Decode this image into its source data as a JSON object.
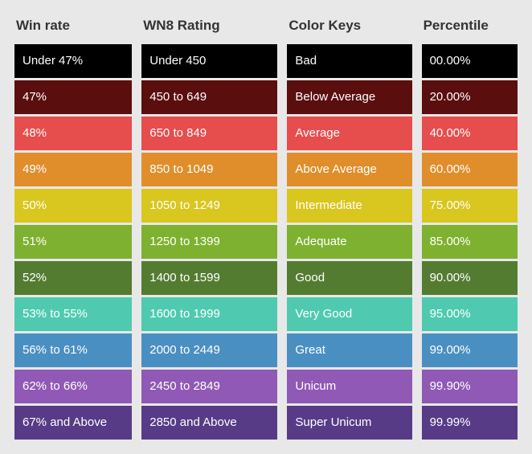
{
  "table": {
    "columns": [
      {
        "key": "winrate",
        "header": "Win rate",
        "width_class": "col-winrate"
      },
      {
        "key": "wn8",
        "header": "WN8 Rating",
        "width_class": "col-wn8"
      },
      {
        "key": "colorkeys",
        "header": "Color Keys",
        "width_class": "col-keys"
      },
      {
        "key": "percentile",
        "header": "Percentile",
        "width_class": "col-pct"
      }
    ],
    "background_color": "#e8e8e8",
    "header_color": "#333333",
    "cell_text_color": "#ffffff",
    "header_fontsize": 17,
    "cell_fontsize": 15,
    "rows": [
      {
        "color": "#000000",
        "winrate": "Under 47%",
        "wn8": "Under 450",
        "colorkeys": "Bad",
        "percentile": "00.00%"
      },
      {
        "color": "#5a0e0e",
        "winrate": "47%",
        "wn8": "450 to 649",
        "colorkeys": "Below Average",
        "percentile": "20.00%"
      },
      {
        "color": "#e64d4d",
        "winrate": "48%",
        "wn8": "650 to 849",
        "colorkeys": "Average",
        "percentile": "40.00%"
      },
      {
        "color": "#e08e2b",
        "winrate": "49%",
        "wn8": "850 to 1049",
        "colorkeys": "Above Average",
        "percentile": "60.00%"
      },
      {
        "color": "#d9c61f",
        "winrate": "50%",
        "wn8": "1050 to 1249",
        "colorkeys": "Intermediate",
        "percentile": "75.00%"
      },
      {
        "color": "#7eb12f",
        "winrate": "51%",
        "wn8": "1250 to 1399",
        "colorkeys": "Adequate",
        "percentile": "85.00%"
      },
      {
        "color": "#547c31",
        "winrate": "52%",
        "wn8": "1400 to 1599",
        "colorkeys": "Good",
        "percentile": "90.00%"
      },
      {
        "color": "#4fcab0",
        "winrate": "53% to 55%",
        "wn8": "1600 to 1999",
        "colorkeys": "Very Good",
        "percentile": "95.00%"
      },
      {
        "color": "#4a8fc2",
        "winrate": "56% to 61%",
        "wn8": "2000 to 2449",
        "colorkeys": "Great",
        "percentile": "99.00%"
      },
      {
        "color": "#8f59b5",
        "winrate": "62% to 66%",
        "wn8": "2450 to 2849",
        "colorkeys": "Unicum",
        "percentile": "99.90%"
      },
      {
        "color": "#573b87",
        "winrate": "67% and Above",
        "wn8": "2850 and Above",
        "colorkeys": "Super Unicum",
        "percentile": "99.99%"
      }
    ]
  }
}
